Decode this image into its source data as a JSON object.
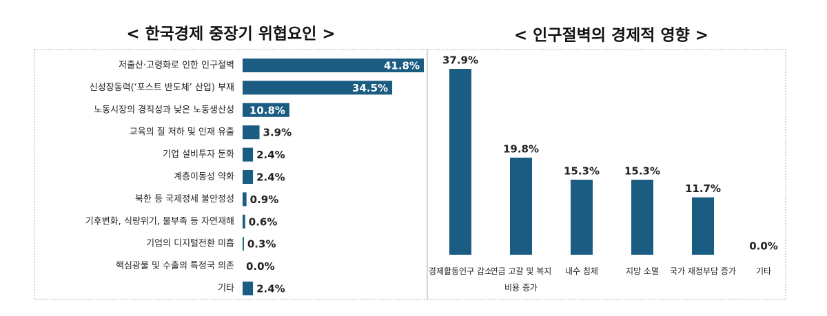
{
  "chart_data": [
    {
      "type": "hbar",
      "title": "< 한국경제 중장기 위협요인 >",
      "color": "#1b5c82",
      "categories": [
        "저출산·고령화로 인한 인구절벽",
        "신성장동력(‘포스트 반도체’ 산업) 부재",
        "노동시장의 경직성과 낮은 노동생산성",
        "교육의 질 저하 및 인재 유출",
        "기업 설비투자 둔화",
        "계층이동성 약화",
        "북한 등 국제정세 불안정성",
        "기후변화, 식량위기, 물부족 등 자연재해",
        "기업의 디지털전환 미흡",
        "핵심광물 및 수출의 특정국 의존",
        "기타"
      ],
      "values": [
        41.8,
        34.5,
        10.8,
        3.9,
        2.4,
        2.4,
        0.9,
        0.6,
        0.3,
        0.0,
        2.4
      ],
      "value_labels": [
        "41.8%",
        "34.5%",
        "10.8%",
        "3.9%",
        "2.4%",
        "2.4%",
        "0.9%",
        "0.6%",
        "0.3%",
        "0.0%",
        "2.4%"
      ]
    },
    {
      "type": "bar",
      "title": "< 인구절벽의 경제적 영향 >",
      "color": "#1b5c82",
      "categories": [
        "경제활동인구 감소",
        "연금 고갈 및 복지비용 증가",
        "내수 침체",
        "지방 소멸",
        "국가 재정부담 증가",
        "기타"
      ],
      "values": [
        37.9,
        19.8,
        15.3,
        15.3,
        11.7,
        0.0
      ],
      "value_labels": [
        "37.9%",
        "19.8%",
        "15.3%",
        "15.3%",
        "11.7%",
        "0.0%"
      ]
    }
  ]
}
